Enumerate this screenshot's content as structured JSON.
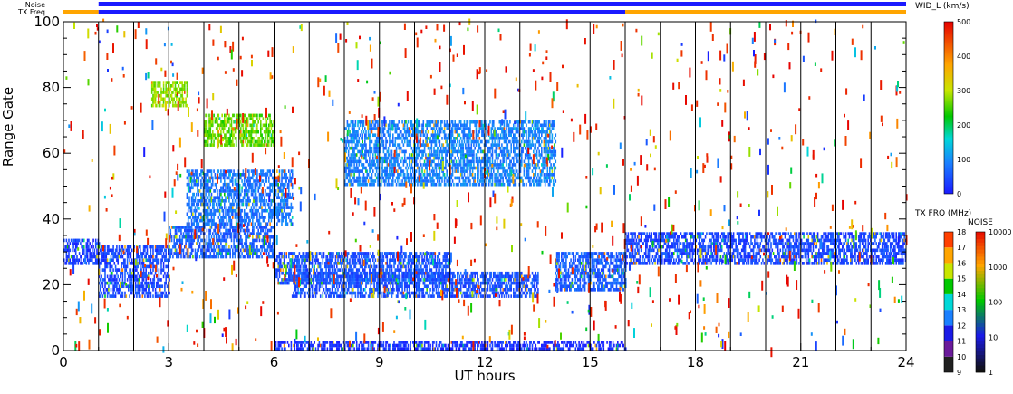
{
  "chart_data": {
    "type": "heatmap",
    "title": "",
    "xlabel": "UT hours",
    "ylabel": "Range Gate",
    "xlim": [
      0,
      24
    ],
    "ylim": [
      0,
      100
    ],
    "x_ticks": [
      "0",
      "3",
      "6",
      "9",
      "12",
      "15",
      "18",
      "21",
      "24"
    ],
    "y_ticks": [
      "0",
      "20",
      "40",
      "60",
      "80",
      "100"
    ],
    "grid": "vertical lines every hour",
    "top_bars": [
      {
        "label": "Noise",
        "color": "#1a1aff",
        "segments": [
          {
            "x": [
              1,
              24
            ],
            "color": "#1a1aff"
          }
        ]
      },
      {
        "label": "TX Freq",
        "color": "#ffa500",
        "segments": [
          {
            "x": [
              0,
              1
            ],
            "color": "#ffa500"
          },
          {
            "x": [
              1,
              16
            ],
            "color": "#1a1aff"
          },
          {
            "x": [
              16,
              24
            ],
            "color": "#ffa500"
          }
        ]
      }
    ],
    "echo_regions": [
      {
        "x": [
          0,
          1
        ],
        "y": [
          26,
          34
        ],
        "value": 30
      },
      {
        "x": [
          1,
          3
        ],
        "y": [
          16,
          32
        ],
        "value": 40
      },
      {
        "x": [
          3,
          6
        ],
        "y": [
          28,
          38
        ],
        "value": 60
      },
      {
        "x": [
          3.5,
          6.5
        ],
        "y": [
          38,
          55
        ],
        "value": 80
      },
      {
        "x": [
          6,
          11
        ],
        "y": [
          20,
          30
        ],
        "value": 50
      },
      {
        "x": [
          6.5,
          13.5
        ],
        "y": [
          16,
          24
        ],
        "value": 50
      },
      {
        "x": [
          8,
          14
        ],
        "y": [
          50,
          70
        ],
        "value": 90
      },
      {
        "x": [
          14,
          16
        ],
        "y": [
          18,
          30
        ],
        "value": 60
      },
      {
        "x": [
          16,
          24
        ],
        "y": [
          26,
          36
        ],
        "value": 40
      },
      {
        "x": [
          6,
          16
        ],
        "y": [
          0,
          3
        ],
        "value": 20
      },
      {
        "x": [
          4,
          6
        ],
        "y": [
          62,
          72
        ],
        "value": 260
      },
      {
        "x": [
          2.5,
          3.5
        ],
        "y": [
          74,
          82
        ],
        "value": 280
      }
    ],
    "colorbars": [
      {
        "title": "WID_L (km/s)",
        "ticks": [
          "0",
          "100",
          "200",
          "300",
          "400",
          "500"
        ]
      },
      {
        "title": "TX FRQ (MHz)",
        "ticks": [
          "9",
          "10",
          "11",
          "12",
          "13",
          "14",
          "15",
          "16",
          "17",
          "18"
        ]
      },
      {
        "title": "NOISE",
        "ticks": [
          "1",
          "10",
          "100",
          "1000",
          "10000"
        ]
      }
    ]
  }
}
